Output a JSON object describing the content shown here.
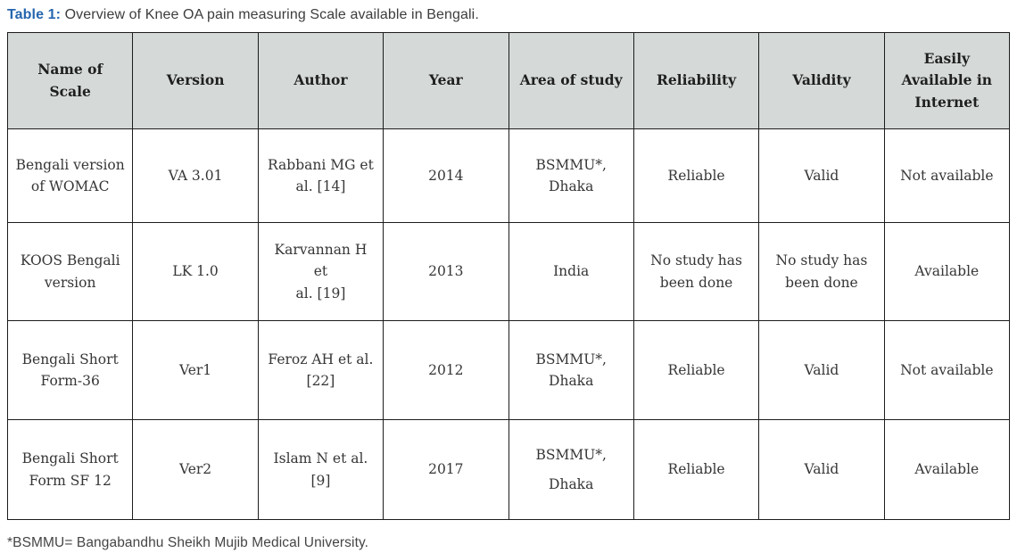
{
  "caption": {
    "label": "Table 1:",
    "text": " Overview of Knee OA pain measuring Scale available in Bengali."
  },
  "table": {
    "headers": [
      "Name of Scale",
      "Version",
      "Author",
      "Year",
      "Area of study",
      "Reliability",
      "Validity",
      "Easily\nAvailable in\nInternet"
    ],
    "rows": [
      [
        "Bengali version\nof WOMAC",
        "VA 3.01",
        "Rabbani MG et\nal. [14]",
        "2014",
        "BSMMU*,\nDhaka",
        "Reliable",
        "Valid",
        "Not available"
      ],
      [
        "KOOS Bengali\nversion",
        "LK 1.0",
        "Karvannan H et\nal. [19]",
        "2013",
        "India",
        "No study has\nbeen done",
        "No study has\nbeen done",
        "Available"
      ],
      [
        "Bengali Short\nForm-36",
        "Ver1",
        "Feroz AH et al.\n[22]",
        "2012",
        "BSMMU*,\nDhaka",
        "Reliable",
        "Valid",
        "Not available"
      ],
      [
        "Bengali Short\nForm SF 12",
        "Ver2",
        "Islam N et al.\n[9]",
        "2017",
        "BSMMU*,\nDhaka",
        "Reliable",
        "Valid",
        "Available"
      ]
    ]
  },
  "footnote": "*BSMMU= Bangabandhu Sheikh Mujib Medical University.",
  "colors": {
    "caption_label_blue": "#2566ae",
    "header_background": "#d5dad9",
    "border": "#1c1c1c",
    "body_text": "#363636"
  }
}
